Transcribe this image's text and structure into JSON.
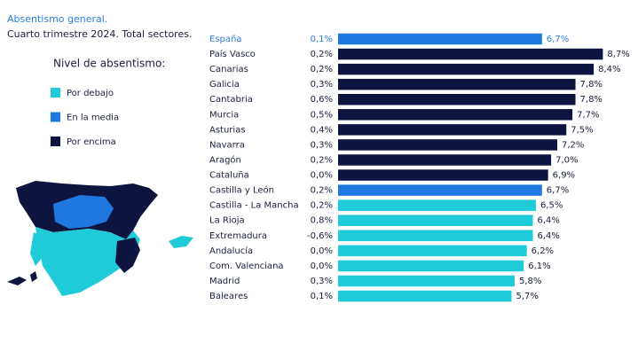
{
  "chart_data": {
    "type": "bar",
    "title": "Absentismo general.",
    "subtitle": "Cuarto trimestre 2024. Total sectores.",
    "legend_title": "Nivel de absentismo:",
    "legend": [
      {
        "name": "Por debajo",
        "color": "#1fcbd8"
      },
      {
        "name": "En la media",
        "color": "#1f78e0"
      },
      {
        "name": "Por encima",
        "color": "#0d1440"
      }
    ],
    "categories": [
      "España",
      "País Vasco",
      "Canarias",
      "Galicia",
      "Cantabria",
      "Murcia",
      "Asturias",
      "Navarra",
      "Aragón",
      "Cataluña",
      "Castilla y León",
      "Castilla - La Mancha",
      "La Rioja",
      "Extremadura",
      "Andalucía",
      "Com. Valenciana",
      "Madrid",
      "Baleares"
    ],
    "values": [
      6.7,
      8.7,
      8.4,
      7.8,
      7.8,
      7.7,
      7.5,
      7.2,
      7.0,
      6.9,
      6.7,
      6.5,
      6.4,
      6.4,
      6.2,
      6.1,
      5.8,
      5.7
    ],
    "value_labels": [
      "6,7%",
      "8,7%",
      "8,4%",
      "7,8%",
      "7,8%",
      "7,7%",
      "7,5%",
      "7,2%",
      "7,0%",
      "6,9%",
      "6,7%",
      "6,5%",
      "6,4%",
      "6,4%",
      "6,2%",
      "6,1%",
      "5,8%",
      "5,7%"
    ],
    "change": {
      "values": [
        0.1,
        0.2,
        0.2,
        0.3,
        0.6,
        0.5,
        0.4,
        0.3,
        0.2,
        0.0,
        0.2,
        0.2,
        0.8,
        -0.6,
        0.0,
        0.0,
        0.3,
        0.1
      ],
      "value_labels": [
        "0,1%",
        "0,2%",
        "0,2%",
        "0,3%",
        "0,6%",
        "0,5%",
        "0,4%",
        "0,3%",
        "0,2%",
        "0,0%",
        "0,2%",
        "0,2%",
        "0,8%",
        "-0,6%",
        "0,0%",
        "0,0%",
        "0,3%",
        "0,1%"
      ]
    },
    "colors": [
      "#1f78e0",
      "#0d1440",
      "#0d1440",
      "#0d1440",
      "#0d1440",
      "#0d1440",
      "#0d1440",
      "#0d1440",
      "#0d1440",
      "#0d1440",
      "#1f78e0",
      "#1fcbd8",
      "#1fcbd8",
      "#1fcbd8",
      "#1fcbd8",
      "#1fcbd8",
      "#1fcbd8",
      "#1fcbd8"
    ]
  }
}
